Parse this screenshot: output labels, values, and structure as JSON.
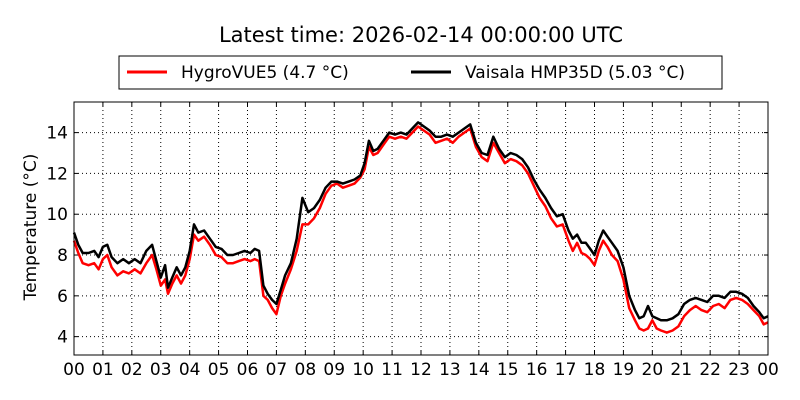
{
  "chart_data": {
    "type": "line",
    "title": "Latest time: 2026-02-14 00:00:00 UTC",
    "xlabel": "",
    "ylabel": "Temperature (°C)",
    "x_tick_labels": [
      "00",
      "01",
      "02",
      "03",
      "04",
      "05",
      "06",
      "07",
      "08",
      "09",
      "10",
      "11",
      "12",
      "13",
      "14",
      "15",
      "16",
      "17",
      "18",
      "19",
      "20",
      "21",
      "22",
      "23",
      "00"
    ],
    "y_ticks": [
      4,
      6,
      8,
      10,
      12,
      14
    ],
    "xlim": [
      0,
      24
    ],
    "ylim": [
      3.1,
      15.5
    ],
    "grid": true,
    "legend_position": "top-center",
    "series": [
      {
        "name": "HygroVUE5 (4.7 °C)",
        "color": "#ff0000",
        "points": [
          [
            0.0,
            8.7
          ],
          [
            0.15,
            8.1
          ],
          [
            0.3,
            7.6
          ],
          [
            0.5,
            7.5
          ],
          [
            0.7,
            7.6
          ],
          [
            0.85,
            7.3
          ],
          [
            1.0,
            7.8
          ],
          [
            1.15,
            8.0
          ],
          [
            1.3,
            7.4
          ],
          [
            1.5,
            7.0
          ],
          [
            1.7,
            7.2
          ],
          [
            1.9,
            7.1
          ],
          [
            2.1,
            7.3
          ],
          [
            2.3,
            7.1
          ],
          [
            2.5,
            7.6
          ],
          [
            2.7,
            8.0
          ],
          [
            2.85,
            7.3
          ],
          [
            3.0,
            6.5
          ],
          [
            3.15,
            6.8
          ],
          [
            3.25,
            6.1
          ],
          [
            3.4,
            6.6
          ],
          [
            3.55,
            7.0
          ],
          [
            3.7,
            6.6
          ],
          [
            3.85,
            7.0
          ],
          [
            4.0,
            7.8
          ],
          [
            4.15,
            9.0
          ],
          [
            4.3,
            8.7
          ],
          [
            4.5,
            8.9
          ],
          [
            4.7,
            8.5
          ],
          [
            4.9,
            8.0
          ],
          [
            5.1,
            7.9
          ],
          [
            5.3,
            7.6
          ],
          [
            5.5,
            7.6
          ],
          [
            5.7,
            7.7
          ],
          [
            5.9,
            7.8
          ],
          [
            6.1,
            7.7
          ],
          [
            6.25,
            7.8
          ],
          [
            6.4,
            7.7
          ],
          [
            6.55,
            6.0
          ],
          [
            6.7,
            5.8
          ],
          [
            6.85,
            5.4
          ],
          [
            7.0,
            5.1
          ],
          [
            7.15,
            6.0
          ],
          [
            7.3,
            6.6
          ],
          [
            7.5,
            7.3
          ],
          [
            7.7,
            8.2
          ],
          [
            7.9,
            9.5
          ],
          [
            8.1,
            9.5
          ],
          [
            8.3,
            9.8
          ],
          [
            8.5,
            10.3
          ],
          [
            8.7,
            11.0
          ],
          [
            8.9,
            11.4
          ],
          [
            9.1,
            11.5
          ],
          [
            9.3,
            11.3
          ],
          [
            9.5,
            11.4
          ],
          [
            9.7,
            11.5
          ],
          [
            9.9,
            11.8
          ],
          [
            10.05,
            12.2
          ],
          [
            10.2,
            13.3
          ],
          [
            10.35,
            12.9
          ],
          [
            10.5,
            13.0
          ],
          [
            10.7,
            13.4
          ],
          [
            10.9,
            13.8
          ],
          [
            11.1,
            13.7
          ],
          [
            11.3,
            13.8
          ],
          [
            11.5,
            13.7
          ],
          [
            11.7,
            14.0
          ],
          [
            11.9,
            14.3
          ],
          [
            12.1,
            14.1
          ],
          [
            12.3,
            13.9
          ],
          [
            12.5,
            13.5
          ],
          [
            12.7,
            13.6
          ],
          [
            12.9,
            13.7
          ],
          [
            13.1,
            13.5
          ],
          [
            13.3,
            13.8
          ],
          [
            13.5,
            14.0
          ],
          [
            13.7,
            14.2
          ],
          [
            13.9,
            13.3
          ],
          [
            14.1,
            12.8
          ],
          [
            14.3,
            12.6
          ],
          [
            14.5,
            13.5
          ],
          [
            14.7,
            13.0
          ],
          [
            14.9,
            12.5
          ],
          [
            15.1,
            12.7
          ],
          [
            15.3,
            12.6
          ],
          [
            15.5,
            12.4
          ],
          [
            15.7,
            12.0
          ],
          [
            15.9,
            11.4
          ],
          [
            16.1,
            10.8
          ],
          [
            16.3,
            10.4
          ],
          [
            16.5,
            9.8
          ],
          [
            16.7,
            9.4
          ],
          [
            16.9,
            9.5
          ],
          [
            17.1,
            8.7
          ],
          [
            17.25,
            8.2
          ],
          [
            17.4,
            8.6
          ],
          [
            17.55,
            8.1
          ],
          [
            17.7,
            8.0
          ],
          [
            17.85,
            7.8
          ],
          [
            18.0,
            7.5
          ],
          [
            18.15,
            8.2
          ],
          [
            18.3,
            8.7
          ],
          [
            18.45,
            8.4
          ],
          [
            18.6,
            8.0
          ],
          [
            18.8,
            7.7
          ],
          [
            19.0,
            6.8
          ],
          [
            19.2,
            5.4
          ],
          [
            19.4,
            4.8
          ],
          [
            19.55,
            4.4
          ],
          [
            19.7,
            4.3
          ],
          [
            19.85,
            4.4
          ],
          [
            20.0,
            4.8
          ],
          [
            20.15,
            4.4
          ],
          [
            20.3,
            4.3
          ],
          [
            20.5,
            4.2
          ],
          [
            20.7,
            4.3
          ],
          [
            20.9,
            4.5
          ],
          [
            21.1,
            5.0
          ],
          [
            21.3,
            5.3
          ],
          [
            21.5,
            5.5
          ],
          [
            21.7,
            5.3
          ],
          [
            21.9,
            5.2
          ],
          [
            22.1,
            5.5
          ],
          [
            22.3,
            5.6
          ],
          [
            22.5,
            5.4
          ],
          [
            22.7,
            5.8
          ],
          [
            22.9,
            5.9
          ],
          [
            23.1,
            5.8
          ],
          [
            23.3,
            5.6
          ],
          [
            23.5,
            5.3
          ],
          [
            23.7,
            5.0
          ],
          [
            23.85,
            4.6
          ],
          [
            24.0,
            4.7
          ]
        ]
      },
      {
        "name": "Vaisala HMP35D (5.03 °C)",
        "color": "#000000",
        "points": [
          [
            0.0,
            9.1
          ],
          [
            0.15,
            8.5
          ],
          [
            0.3,
            8.1
          ],
          [
            0.5,
            8.1
          ],
          [
            0.7,
            8.2
          ],
          [
            0.85,
            7.9
          ],
          [
            1.0,
            8.4
          ],
          [
            1.15,
            8.5
          ],
          [
            1.3,
            7.9
          ],
          [
            1.5,
            7.6
          ],
          [
            1.7,
            7.8
          ],
          [
            1.9,
            7.6
          ],
          [
            2.1,
            7.8
          ],
          [
            2.3,
            7.6
          ],
          [
            2.5,
            8.2
          ],
          [
            2.7,
            8.5
          ],
          [
            2.85,
            7.7
          ],
          [
            3.0,
            6.9
          ],
          [
            3.15,
            7.5
          ],
          [
            3.25,
            6.4
          ],
          [
            3.4,
            6.9
          ],
          [
            3.55,
            7.4
          ],
          [
            3.7,
            7.0
          ],
          [
            3.85,
            7.4
          ],
          [
            4.0,
            8.2
          ],
          [
            4.15,
            9.5
          ],
          [
            4.3,
            9.1
          ],
          [
            4.5,
            9.2
          ],
          [
            4.7,
            8.8
          ],
          [
            4.9,
            8.4
          ],
          [
            5.1,
            8.3
          ],
          [
            5.3,
            8.0
          ],
          [
            5.5,
            8.0
          ],
          [
            5.7,
            8.1
          ],
          [
            5.9,
            8.2
          ],
          [
            6.1,
            8.1
          ],
          [
            6.25,
            8.3
          ],
          [
            6.4,
            8.2
          ],
          [
            6.55,
            6.5
          ],
          [
            6.7,
            6.1
          ],
          [
            6.85,
            5.8
          ],
          [
            7.0,
            5.6
          ],
          [
            7.15,
            6.3
          ],
          [
            7.3,
            7.0
          ],
          [
            7.5,
            7.6
          ],
          [
            7.7,
            8.8
          ],
          [
            7.9,
            10.8
          ],
          [
            8.1,
            10.1
          ],
          [
            8.3,
            10.3
          ],
          [
            8.5,
            10.7
          ],
          [
            8.7,
            11.3
          ],
          [
            8.9,
            11.6
          ],
          [
            9.1,
            11.6
          ],
          [
            9.3,
            11.5
          ],
          [
            9.5,
            11.6
          ],
          [
            9.7,
            11.7
          ],
          [
            9.9,
            11.9
          ],
          [
            10.05,
            12.5
          ],
          [
            10.2,
            13.6
          ],
          [
            10.35,
            13.1
          ],
          [
            10.5,
            13.2
          ],
          [
            10.7,
            13.6
          ],
          [
            10.9,
            14.0
          ],
          [
            11.1,
            13.9
          ],
          [
            11.3,
            14.0
          ],
          [
            11.5,
            13.9
          ],
          [
            11.7,
            14.2
          ],
          [
            11.9,
            14.5
          ],
          [
            12.1,
            14.3
          ],
          [
            12.3,
            14.1
          ],
          [
            12.5,
            13.8
          ],
          [
            12.7,
            13.8
          ],
          [
            12.9,
            13.9
          ],
          [
            13.1,
            13.8
          ],
          [
            13.3,
            14.0
          ],
          [
            13.5,
            14.2
          ],
          [
            13.7,
            14.4
          ],
          [
            13.9,
            13.5
          ],
          [
            14.1,
            13.0
          ],
          [
            14.3,
            12.9
          ],
          [
            14.5,
            13.8
          ],
          [
            14.7,
            13.2
          ],
          [
            14.9,
            12.8
          ],
          [
            15.1,
            13.0
          ],
          [
            15.3,
            12.9
          ],
          [
            15.5,
            12.7
          ],
          [
            15.7,
            12.3
          ],
          [
            15.9,
            11.7
          ],
          [
            16.1,
            11.2
          ],
          [
            16.3,
            10.8
          ],
          [
            16.5,
            10.3
          ],
          [
            16.7,
            9.9
          ],
          [
            16.9,
            10.0
          ],
          [
            17.1,
            9.2
          ],
          [
            17.25,
            8.8
          ],
          [
            17.4,
            9.0
          ],
          [
            17.55,
            8.6
          ],
          [
            17.7,
            8.6
          ],
          [
            17.85,
            8.3
          ],
          [
            18.0,
            8.0
          ],
          [
            18.15,
            8.7
          ],
          [
            18.3,
            9.2
          ],
          [
            18.45,
            8.9
          ],
          [
            18.6,
            8.6
          ],
          [
            18.8,
            8.2
          ],
          [
            19.0,
            7.4
          ],
          [
            19.2,
            6.0
          ],
          [
            19.4,
            5.3
          ],
          [
            19.55,
            4.9
          ],
          [
            19.7,
            5.0
          ],
          [
            19.85,
            5.5
          ],
          [
            20.0,
            5.0
          ],
          [
            20.15,
            4.9
          ],
          [
            20.3,
            4.8
          ],
          [
            20.5,
            4.8
          ],
          [
            20.7,
            4.9
          ],
          [
            20.9,
            5.1
          ],
          [
            21.1,
            5.6
          ],
          [
            21.3,
            5.8
          ],
          [
            21.5,
            5.9
          ],
          [
            21.7,
            5.8
          ],
          [
            21.9,
            5.7
          ],
          [
            22.1,
            6.0
          ],
          [
            22.3,
            6.0
          ],
          [
            22.5,
            5.9
          ],
          [
            22.7,
            6.2
          ],
          [
            22.9,
            6.2
          ],
          [
            23.1,
            6.1
          ],
          [
            23.3,
            5.9
          ],
          [
            23.5,
            5.5
          ],
          [
            23.7,
            5.2
          ],
          [
            23.85,
            4.9
          ],
          [
            24.0,
            5.0
          ]
        ]
      }
    ]
  }
}
